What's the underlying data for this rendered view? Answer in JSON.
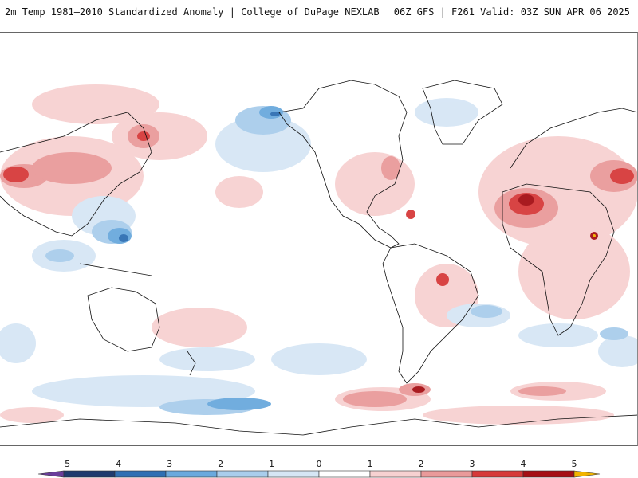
{
  "header": {
    "title": "2m Temp 1981–2010 Standardized Anomaly | College of DuPage NEXLAB",
    "model_info": "06Z GFS | F261 Valid: 03Z SUN APR 06 2025"
  },
  "map": {
    "projection": "equirectangular-global",
    "center_longitude": "dateline",
    "variable": "2m temperature standardized anomaly",
    "background_color": "#ffffff",
    "coastline_color": "#111111"
  },
  "colorbar": {
    "ticks": [
      "−5",
      "−4",
      "−3",
      "−2",
      "−1",
      "0",
      "1",
      "2",
      "3",
      "4",
      "5"
    ],
    "bins": [
      {
        "from": -5.5,
        "to": -5,
        "color": "#6a3d9a"
      },
      {
        "from": -5,
        "to": -4,
        "color": "#1f3a6e"
      },
      {
        "from": -4,
        "to": -3,
        "color": "#2f6fb3"
      },
      {
        "from": -3,
        "to": -2,
        "color": "#6aa9dd"
      },
      {
        "from": -2,
        "to": -1,
        "color": "#a9cdec"
      },
      {
        "from": -1,
        "to": 0,
        "color": "#d6e6f5"
      },
      {
        "from": 0,
        "to": 1,
        "color": "#ffffff"
      },
      {
        "from": 1,
        "to": 2,
        "color": "#f7d1d1"
      },
      {
        "from": 2,
        "to": 3,
        "color": "#e99a9a"
      },
      {
        "from": 3,
        "to": 4,
        "color": "#d63a3a"
      },
      {
        "from": 4,
        "to": 5,
        "color": "#a50f15"
      },
      {
        "from": 5,
        "to": 5.5,
        "color": "#f2b400"
      }
    ]
  }
}
